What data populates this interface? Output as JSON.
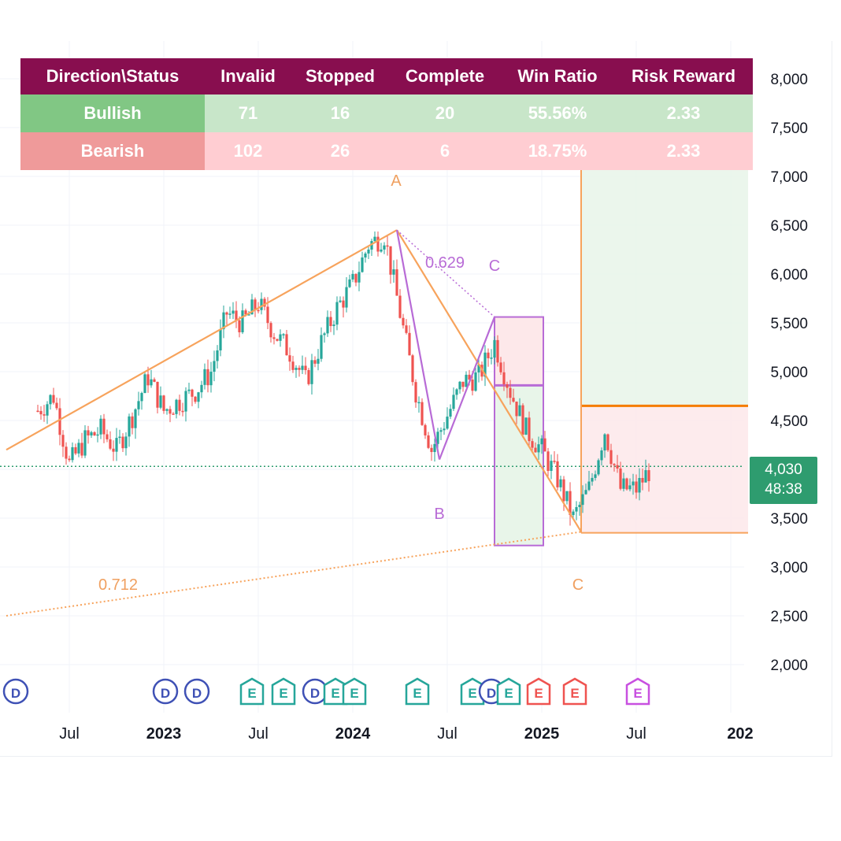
{
  "colors": {
    "header_bg": "#880e4f",
    "bullish_bg": "#c8e6c9",
    "bearish_bg": "#ffcdd2",
    "pattern_orange": "#f7a35c",
    "pattern_purple": "#b86bd6",
    "candle_up": "#26a69a",
    "candle_down": "#ef5350",
    "price_tag": "#2e9c6f"
  },
  "stats_table": {
    "headers": [
      "Direction\\Status",
      "Invalid",
      "Stopped",
      "Complete",
      "Win Ratio",
      "Risk Reward"
    ],
    "rows": [
      {
        "direction": "Bullish",
        "invalid": "71",
        "stopped": "16",
        "complete": "20",
        "win_ratio": "55.56%",
        "risk_reward": "2.33"
      },
      {
        "direction": "Bearish",
        "invalid": "102",
        "stopped": "26",
        "complete": "6",
        "win_ratio": "18.75%",
        "risk_reward": "2.33"
      }
    ]
  },
  "price_tag": {
    "price": "4,030",
    "countdown": "48:38"
  },
  "labels": {
    "orange_a": "A",
    "orange_c": "C",
    "purple_b": "B",
    "purple_c": "C",
    "ratio_purple": "0.629",
    "ratio_orange": "0.712"
  },
  "event_markers": [
    "D",
    "D",
    "D",
    "E",
    "E",
    "D",
    "E",
    "E",
    "E",
    "E",
    "D",
    "E",
    "E",
    "E",
    "E"
  ],
  "chart_data": {
    "type": "line",
    "series": [
      {
        "x": [
          "2022-05",
          "2022-06",
          "2022-07",
          "2022-08",
          "2022-09",
          "2022-10",
          "2022-11",
          "2022-12",
          "2023-01",
          "2023-02",
          "2023-03",
          "2023-04",
          "2023-05",
          "2023-06",
          "2023-07",
          "2023-08",
          "2023-09",
          "2023-10",
          "2023-11",
          "2023-12",
          "2024-01",
          "2024-02",
          "2024-03",
          "2024-04",
          "2024-05",
          "2024-06",
          "2024-07",
          "2024-08",
          "2024-09",
          "2024-10",
          "2024-11",
          "2024-12",
          "2025-01",
          "2025-02",
          "2025-03",
          "2025-04",
          "2025-05",
          "2025-06",
          "2025-07",
          "2025-08"
        ],
        "values": [
          4600,
          4750,
          4050,
          4300,
          4400,
          4200,
          4550,
          4950,
          4600,
          4700,
          4800,
          5000,
          5600,
          5500,
          5700,
          5400,
          5200,
          4900,
          5300,
          5650,
          5900,
          6300,
          6400,
          5600,
          4800,
          4200,
          4550,
          4900,
          4950,
          5300,
          4800,
          4400,
          4200,
          3900,
          3500,
          3800,
          4400,
          3800,
          3800,
          4030
        ]
      }
    ],
    "ytick_labels": [
      "8,000",
      "7,500",
      "7,000",
      "6,500",
      "6,000",
      "5,500",
      "5,000",
      "4,500",
      "3,500",
      "3,000",
      "2,500",
      "2,000"
    ],
    "xtick_labels": [
      "Jul",
      "2023",
      "Jul",
      "2024",
      "Jul",
      "2025",
      "Jul",
      "202"
    ],
    "ylim": [
      2000,
      8000
    ]
  }
}
